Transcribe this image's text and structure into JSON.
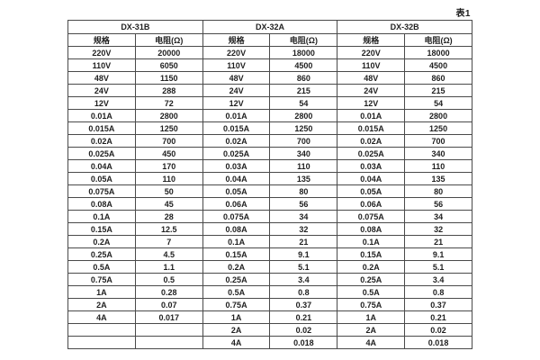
{
  "caption": "表1",
  "table": {
    "groups": [
      {
        "name": "DX-31B",
        "spec_header": "规格",
        "res_header": "电阻(Ω)"
      },
      {
        "name": "DX-32A",
        "spec_header": "规格",
        "res_header": "电阻(Ω)"
      },
      {
        "name": "DX-32B",
        "spec_header": "规格",
        "res_header": "电阻(Ω)"
      }
    ],
    "rows": [
      [
        "220V",
        "20000",
        "220V",
        "18000",
        "220V",
        "18000"
      ],
      [
        "110V",
        "6050",
        "110V",
        "4500",
        "110V",
        "4500"
      ],
      [
        "48V",
        "1150",
        "48V",
        "860",
        "48V",
        "860"
      ],
      [
        "24V",
        "288",
        "24V",
        "215",
        "24V",
        "215"
      ],
      [
        "12V",
        "72",
        "12V",
        "54",
        "12V",
        "54"
      ],
      [
        "0.01A",
        "2800",
        "0.01A",
        "2800",
        "0.01A",
        "2800"
      ],
      [
        "0.015A",
        "1250",
        "0.015A",
        "1250",
        "0.015A",
        "1250"
      ],
      [
        "0.02A",
        "700",
        "0.02A",
        "700",
        "0.02A",
        "700"
      ],
      [
        "0.025A",
        "450",
        "0.025A",
        "340",
        "0.025A",
        "340"
      ],
      [
        "0.04A",
        "170",
        "0.03A",
        "110",
        "0.03A",
        "110"
      ],
      [
        "0.05A",
        "110",
        "0.04A",
        "135",
        "0.04A",
        "135"
      ],
      [
        "0.075A",
        "50",
        "0.05A",
        "80",
        "0.05A",
        "80"
      ],
      [
        "0.08A",
        "45",
        "0.06A",
        "56",
        "0.06A",
        "56"
      ],
      [
        "0.1A",
        "28",
        "0.075A",
        "34",
        "0.075A",
        "34"
      ],
      [
        "0.15A",
        "12.5",
        "0.08A",
        "32",
        "0.08A",
        "32"
      ],
      [
        "0.2A",
        "7",
        "0.1A",
        "21",
        "0.1A",
        "21"
      ],
      [
        "0.25A",
        "4.5",
        "0.15A",
        "9.1",
        "0.15A",
        "9.1"
      ],
      [
        "0.5A",
        "1.1",
        "0.2A",
        "5.1",
        "0.2A",
        "5.1"
      ],
      [
        "0.75A",
        "0.5",
        "0.25A",
        "3.4",
        "0.25A",
        "3.4"
      ],
      [
        "1A",
        "0.28",
        "0.5A",
        "0.8",
        "0.5A",
        "0.8"
      ],
      [
        "2A",
        "0.07",
        "0.75A",
        "0.37",
        "0.75A",
        "0.37"
      ],
      [
        "4A",
        "0.017",
        "1A",
        "0.21",
        "1A",
        "0.21"
      ],
      [
        "",
        "",
        "2A",
        "0.02",
        "2A",
        "0.02"
      ],
      [
        "",
        "",
        "4A",
        "0.018",
        "4A",
        "0.018"
      ]
    ]
  },
  "colors": {
    "border": "#4a4a4a",
    "text": "#1f1f1f",
    "background": "#ffffff"
  }
}
